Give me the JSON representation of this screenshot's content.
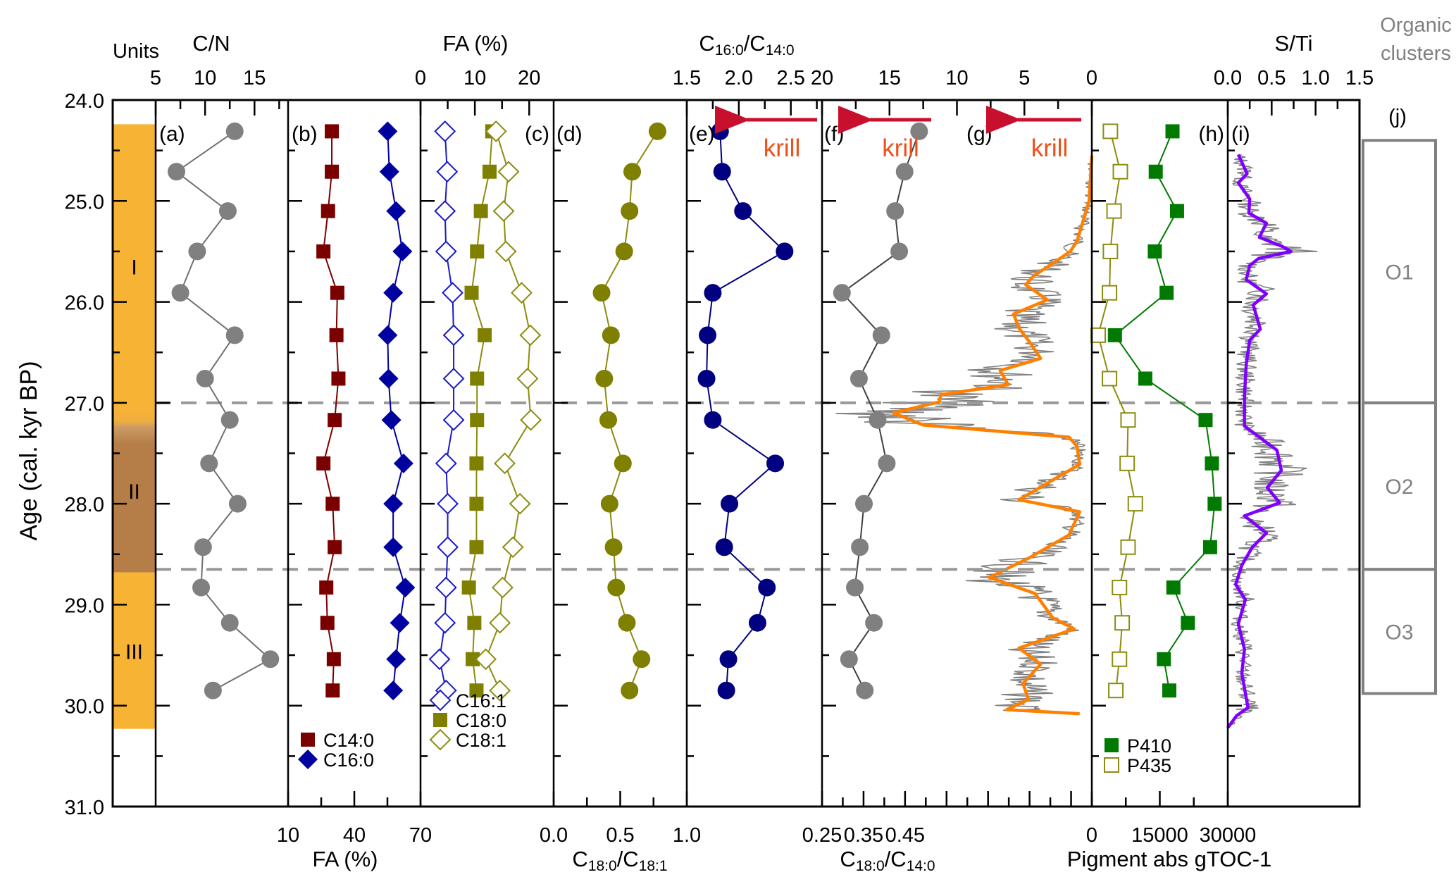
{
  "chart_data": {
    "type": "scatter",
    "title": "",
    "ylabel": "Age (cal. kyr BP)",
    "ylim": [
      24.0,
      31.0
    ],
    "yticks": [
      24.0,
      25.0,
      26.0,
      27.0,
      28.0,
      29.0,
      30.0,
      31.0
    ],
    "y_reversed": true,
    "reference_lines": [
      27.0,
      28.65
    ],
    "units": {
      "title": "Units",
      "segments": [
        {
          "label": "I",
          "from": 24.24,
          "to": 27.05,
          "color": "#F7B334"
        },
        {
          "label": "II",
          "from": 27.05,
          "to": 28.68,
          "color": "#B57D47"
        },
        {
          "label": "III",
          "from": 28.68,
          "to": 30.23,
          "color": "#F7B334"
        }
      ]
    },
    "sample_ages": [
      24.31,
      24.71,
      25.1,
      25.5,
      25.91,
      26.33,
      26.76,
      27.17,
      27.6,
      28.0,
      28.43,
      28.83,
      29.18,
      29.54,
      29.85
    ],
    "panels": [
      {
        "id": "a",
        "tag": "(a)",
        "top_title": "C/N",
        "axis": "top",
        "xlim": [
          5,
          18.4
        ],
        "xticks": [
          5,
          10,
          15
        ],
        "series": [
          {
            "name": "C/N",
            "marker": "circle",
            "color": "#808080",
            "line": "#707070",
            "values": [
              13.0,
              7.1,
              12.3,
              9.2,
              7.5,
              13.0,
              10.0,
              12.5,
              10.4,
              13.3,
              9.8,
              9.6,
              12.5,
              16.6,
              10.8
            ]
          }
        ]
      },
      {
        "id": "b",
        "tag": "(b)",
        "bottom_title": "FA (%)",
        "axis": "bottom",
        "xlim": [
          10,
          70
        ],
        "xticks": [
          10,
          40,
          70
        ],
        "legend": "bottom-left",
        "series": [
          {
            "name": "C14:0",
            "marker": "square",
            "color": "#7A0000",
            "line": "#7A0000",
            "values": [
              29.8,
              29.8,
              28.1,
              26.0,
              32.3,
              31.9,
              32.8,
              31.1,
              26.0,
              30.2,
              31.1,
              27.3,
              27.8,
              30.7,
              30.2
            ]
          },
          {
            "name": "C16:0",
            "marker": "diamond",
            "color": "#0000A0",
            "line": "#0000A0",
            "values": [
              55.1,
              55.9,
              58.9,
              61.8,
              57.6,
              55.1,
              55.5,
              56.8,
              62.3,
              57.6,
              57.6,
              63.1,
              60.6,
              58.9,
              57.6
            ]
          }
        ]
      },
      {
        "id": "c",
        "tag": "(c)",
        "top_title": "FA (%)",
        "axis": "top",
        "xlim": [
          0,
          24.5
        ],
        "xticks": [
          0,
          10,
          20
        ],
        "legend": "bottom-left",
        "series": [
          {
            "name": "C16:1",
            "marker": "diamond-open",
            "color": "#1A1AC8",
            "line": "#1A1AC8",
            "values": [
              4.5,
              4.9,
              4.5,
              4.7,
              5.9,
              6.1,
              6.1,
              6.1,
              4.7,
              5.0,
              5.0,
              4.7,
              4.5,
              3.5,
              4.7
            ]
          },
          {
            "name": "C18:0",
            "marker": "square",
            "color": "#7F7F00",
            "line": "#8C8C10",
            "values": [
              13.2,
              12.7,
              11.1,
              10.4,
              9.4,
              11.8,
              10.4,
              10.4,
              10.3,
              10.3,
              10.3,
              8.9,
              9.9,
              9.6,
              10.3
            ]
          },
          {
            "name": "C18:1",
            "marker": "diamond-open",
            "color": "#8C8C10",
            "line": "#8C8C10",
            "values": [
              13.9,
              16.2,
              15.3,
              15.7,
              18.6,
              20.2,
              19.7,
              20.3,
              15.5,
              18.3,
              17.0,
              15.1,
              14.6,
              12.0,
              14.6
            ]
          }
        ]
      },
      {
        "id": "d",
        "tag": "(d)",
        "bottom_title": "C18:0/C18:1",
        "bottom_title_parts": [
          "C",
          "18:0",
          "/C",
          "18:1"
        ],
        "axis": "bottom",
        "xlim": [
          0.0,
          1.0
        ],
        "xticks": [
          0.0,
          0.5,
          1.0
        ],
        "series": [
          {
            "name": "C18:0/C18:1",
            "marker": "circle",
            "color": "#7F7F00",
            "line": "#8C8C10",
            "values": [
              0.78,
              0.59,
              0.57,
              0.53,
              0.36,
              0.43,
              0.38,
              0.41,
              0.52,
              0.42,
              0.45,
              0.47,
              0.55,
              0.66,
              0.57
            ]
          }
        ]
      },
      {
        "id": "e",
        "tag": "(e)",
        "top_title": "C16:0/C14:0",
        "top_title_parts": [
          "C",
          "16:0",
          "/C",
          "14:0"
        ],
        "axis": "top",
        "xlim": [
          1.5,
          2.8
        ],
        "xticks": [
          1.5,
          2.0,
          2.5
        ],
        "annotation": "krill",
        "series": [
          {
            "name": "C16:0/C14:0",
            "marker": "circle",
            "color": "#000080",
            "line": "#000080",
            "values": [
              1.82,
              1.84,
              2.04,
              2.44,
              1.75,
              1.7,
              1.69,
              1.75,
              2.35,
              1.91,
              1.86,
              2.27,
              2.18,
              1.9,
              1.88
            ]
          }
        ]
      },
      {
        "id": "f",
        "tag": "(f)",
        "bottom_title": "C18:0/C14:0",
        "bottom_title_parts": [
          "C",
          "18:0",
          "/C",
          "14:0"
        ],
        "axis": "bottom",
        "xlim": [
          0.25,
          0.9
        ],
        "xticks": [
          0.25,
          0.35,
          0.45
        ],
        "annotation": "krill",
        "series": [
          {
            "name": "C18:0/C14:0",
            "marker": "circle",
            "color": "#808080",
            "line": "#404040",
            "values": [
              0.484,
              0.449,
              0.426,
              0.436,
              0.298,
              0.393,
              0.339,
              0.384,
              0.406,
              0.351,
              0.341,
              0.329,
              0.375,
              0.315,
              0.353
            ]
          }
        ]
      },
      {
        "id": "g",
        "tag": "(g)",
        "axis": "top",
        "xlim": [
          20,
          0
        ],
        "xticks": [
          20,
          15,
          10,
          5,
          0
        ],
        "x_reversed": true,
        "annotation": "krill",
        "continuous": {
          "smoothed_color": "#FF8000",
          "raw_color": "#808080",
          "age": [
            24.55,
            25.0,
            25.4,
            25.5,
            25.62,
            25.74,
            25.83,
            25.98,
            26.12,
            26.26,
            26.4,
            26.56,
            26.68,
            26.82,
            26.92,
            26.99,
            27.1,
            27.22,
            27.34,
            27.43,
            27.61,
            27.96,
            28.08,
            28.31,
            28.54,
            28.73,
            28.89,
            29.13,
            29.24,
            29.43,
            29.59,
            29.78,
            29.94,
            30.04,
            30.08
          ],
          "smoothed": [
            0.0,
            0.2,
            1.1,
            1.6,
            2.9,
            4.3,
            4.9,
            3.3,
            5.8,
            5.4,
            4.6,
            3.8,
            6.8,
            6.2,
            11.2,
            11.3,
            14.7,
            12.5,
            1.7,
            1.1,
            0.9,
            5.4,
            0.9,
            1.7,
            4.7,
            7.6,
            4.2,
            2.9,
            1.3,
            5.4,
            3.8,
            5.1,
            4.7,
            6.3,
            0.9
          ]
        }
      },
      {
        "id": "h",
        "tag": "(h)",
        "bottom_title": "Pigment abs gTOC-1",
        "axis": "bottom",
        "xlim": [
          0,
          30000
        ],
        "xticks": [
          0,
          15000,
          30000
        ],
        "legend": "bottom-left",
        "series": [
          {
            "name": "P410",
            "marker": "square",
            "color": "#007A00",
            "line": "#007A00",
            "values": [
              17800,
              14100,
              18800,
              13900,
              16500,
              5100,
              11800,
              25100,
              26500,
              27100,
              26100,
              18000,
              21200,
              15900,
              17100
            ]
          },
          {
            "name": "P435",
            "marker": "square-open",
            "color": "#8C8C10",
            "line": "#8C8C10",
            "values": [
              4100,
              6300,
              4900,
              4100,
              3900,
              1400,
              3900,
              8000,
              7800,
              9600,
              8000,
              6100,
              6700,
              6100,
              5300
            ]
          }
        ]
      },
      {
        "id": "i",
        "tag": "(i)",
        "top_title": "S/Ti",
        "axis": "top",
        "xlim": [
          0.0,
          1.5
        ],
        "xticks": [
          0.0,
          0.5,
          1.0,
          1.5
        ],
        "continuous": {
          "smoothed_color": "#8000FF",
          "raw_color": "#808080",
          "age": [
            24.54,
            24.73,
            24.82,
            24.98,
            25.12,
            25.22,
            25.36,
            25.45,
            25.5,
            25.57,
            25.64,
            25.78,
            25.92,
            26.03,
            26.27,
            26.38,
            26.62,
            26.94,
            27.23,
            27.47,
            27.67,
            27.84,
            27.99,
            28.12,
            28.29,
            28.43,
            28.61,
            28.8,
            28.95,
            29.19,
            29.44,
            29.68,
            30.02,
            30.1,
            30.22
          ],
          "smoothed": [
            0.12,
            0.22,
            0.12,
            0.25,
            0.24,
            0.44,
            0.36,
            0.62,
            0.72,
            0.35,
            0.25,
            0.21,
            0.44,
            0.29,
            0.37,
            0.25,
            0.21,
            0.19,
            0.19,
            0.56,
            0.61,
            0.45,
            0.59,
            0.19,
            0.44,
            0.28,
            0.16,
            0.09,
            0.2,
            0.12,
            0.19,
            0.16,
            0.23,
            0.1,
            0.0
          ]
        }
      }
    ],
    "clusters": {
      "tag": "(j)",
      "title_lines": [
        "Organic",
        "clusters"
      ],
      "boxes": [
        {
          "label": "O1",
          "from": 24.4,
          "to": 27.0
        },
        {
          "label": "O2",
          "from": 27.0,
          "to": 28.65
        },
        {
          "label": "O3",
          "from": 28.65,
          "to": 29.88
        }
      ]
    }
  }
}
